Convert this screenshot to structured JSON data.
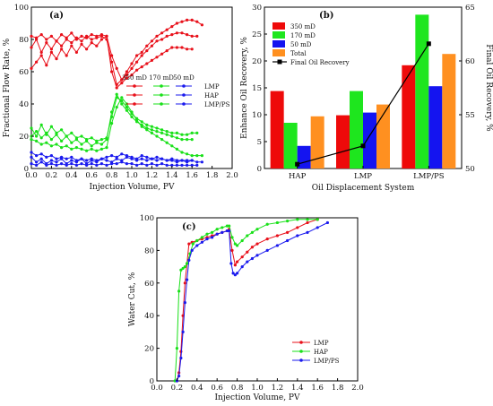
{
  "chart_data": [
    {
      "panel": "(a)",
      "type": "line",
      "xlabel": "Injection Volume, PV",
      "ylabel": "Fractional Flow Rate, %",
      "xlim": [
        0,
        2.0
      ],
      "ylim": [
        0,
        100
      ],
      "xticks": [
        "0.0",
        "0.2",
        "0.4",
        "0.6",
        "0.8",
        "1.0",
        "1.2",
        "1.4",
        "1.6",
        "1.8",
        "2.0"
      ],
      "yticks": [
        "0",
        "20",
        "40",
        "60",
        "80",
        "100"
      ],
      "legend_header": [
        "350 mD",
        "170 mD",
        "50 mD"
      ],
      "legend_rows": [
        "LMP",
        "HAP",
        "LMP/PS"
      ],
      "colors": {
        "red": "#e8101a",
        "green": "#19e019",
        "blue": "#1a1aee"
      },
      "series": [
        {
          "group": "350 mD",
          "system": "LMP",
          "color": "red",
          "marker": "dot",
          "x": [
            0,
            0.05,
            0.1,
            0.15,
            0.2,
            0.25,
            0.3,
            0.35,
            0.4,
            0.45,
            0.5,
            0.55,
            0.6,
            0.65,
            0.7,
            0.75,
            0.8,
            0.85,
            0.9,
            0.95,
            1.0,
            1.05,
            1.1,
            1.15,
            1.2,
            1.25,
            1.3,
            1.35,
            1.4,
            1.45,
            1.5,
            1.55,
            1.6,
            1.65,
            1.7
          ],
          "y": [
            82,
            81,
            83,
            80,
            82,
            79,
            83,
            81,
            84,
            80,
            82,
            81,
            83,
            82,
            83,
            82,
            70,
            62,
            55,
            60,
            65,
            70,
            72,
            76,
            79,
            82,
            84,
            86,
            88,
            90,
            91,
            92,
            92,
            91,
            89
          ]
        },
        {
          "group": "350 mD",
          "system": "HAP",
          "color": "red",
          "marker": "dot",
          "x": [
            0,
            0.05,
            0.1,
            0.15,
            0.2,
            0.25,
            0.3,
            0.35,
            0.4,
            0.45,
            0.5,
            0.55,
            0.6,
            0.65,
            0.7,
            0.75,
            0.8,
            0.85,
            0.9,
            0.95,
            1.0,
            1.05,
            1.1,
            1.15,
            1.2,
            1.25,
            1.3,
            1.35,
            1.4,
            1.45,
            1.5,
            1.55,
            1.6,
            1.65
          ],
          "y": [
            75,
            80,
            72,
            78,
            74,
            79,
            76,
            80,
            78,
            81,
            79,
            82,
            80,
            81,
            82,
            80,
            66,
            52,
            55,
            58,
            62,
            66,
            70,
            73,
            76,
            79,
            80,
            82,
            83,
            84,
            84,
            83,
            82,
            82
          ]
        },
        {
          "group": "350 mD",
          "system": "LMP/PS",
          "color": "red",
          "marker": "dot",
          "x": [
            0,
            0.05,
            0.1,
            0.15,
            0.2,
            0.25,
            0.3,
            0.35,
            0.4,
            0.45,
            0.5,
            0.55,
            0.6,
            0.65,
            0.7,
            0.75,
            0.8,
            0.85,
            0.9,
            0.95,
            1.0,
            1.05,
            1.1,
            1.15,
            1.2,
            1.25,
            1.3,
            1.35,
            1.4,
            1.45,
            1.5,
            1.55,
            1.6
          ],
          "y": [
            62,
            66,
            70,
            64,
            72,
            68,
            74,
            70,
            76,
            72,
            77,
            74,
            78,
            76,
            80,
            82,
            60,
            50,
            53,
            56,
            58,
            61,
            63,
            65,
            67,
            69,
            71,
            73,
            75,
            75,
            75,
            74,
            74
          ]
        },
        {
          "group": "170 mD",
          "system": "LMP",
          "color": "green",
          "marker": "dot",
          "x": [
            0,
            0.05,
            0.1,
            0.15,
            0.2,
            0.25,
            0.3,
            0.35,
            0.4,
            0.45,
            0.5,
            0.55,
            0.6,
            0.65,
            0.7,
            0.75,
            0.8,
            0.85,
            0.9,
            0.95,
            1.0,
            1.05,
            1.1,
            1.15,
            1.2,
            1.25,
            1.3,
            1.35,
            1.4,
            1.45,
            1.5,
            1.55,
            1.6,
            1.65,
            1.7
          ],
          "y": [
            18,
            17,
            15,
            16,
            14,
            15,
            13,
            14,
            12,
            13,
            12,
            11,
            12,
            11,
            12,
            13,
            28,
            38,
            44,
            40,
            35,
            30,
            26,
            24,
            22,
            20,
            18,
            16,
            14,
            12,
            10,
            9,
            8,
            8,
            8
          ]
        },
        {
          "group": "170 mD",
          "system": "HAP",
          "color": "green",
          "marker": "dot",
          "x": [
            0,
            0.05,
            0.1,
            0.15,
            0.2,
            0.25,
            0.3,
            0.35,
            0.4,
            0.45,
            0.5,
            0.55,
            0.6,
            0.65,
            0.7,
            0.75,
            0.8,
            0.85,
            0.9,
            0.95,
            1.0,
            1.05,
            1.1,
            1.15,
            1.2,
            1.25,
            1.3,
            1.35,
            1.4,
            1.45,
            1.5,
            1.55,
            1.6,
            1.65
          ],
          "y": [
            25,
            20,
            27,
            21,
            26,
            22,
            24,
            20,
            22,
            19,
            20,
            18,
            19,
            17,
            18,
            19,
            32,
            44,
            42,
            38,
            34,
            31,
            29,
            27,
            26,
            25,
            24,
            23,
            22,
            22,
            21,
            21,
            22,
            22
          ]
        },
        {
          "group": "170 mD",
          "system": "LMP/PS",
          "color": "green",
          "marker": "dot",
          "x": [
            0,
            0.05,
            0.1,
            0.15,
            0.2,
            0.25,
            0.3,
            0.35,
            0.4,
            0.45,
            0.5,
            0.55,
            0.6,
            0.65,
            0.7,
            0.75,
            0.8,
            0.85,
            0.9,
            0.95,
            1.0,
            1.05,
            1.1,
            1.15,
            1.2,
            1.25,
            1.3,
            1.35,
            1.4,
            1.45,
            1.5,
            1.55,
            1.6
          ],
          "y": [
            20,
            23,
            19,
            22,
            18,
            21,
            17,
            20,
            16,
            18,
            15,
            17,
            14,
            16,
            15,
            18,
            35,
            46,
            40,
            36,
            32,
            29,
            27,
            25,
            24,
            23,
            22,
            21,
            20,
            19,
            18,
            18,
            18
          ]
        },
        {
          "group": "50 mD",
          "system": "LMP",
          "color": "blue",
          "marker": "dot",
          "x": [
            0,
            0.05,
            0.1,
            0.15,
            0.2,
            0.25,
            0.3,
            0.35,
            0.4,
            0.45,
            0.5,
            0.55,
            0.6,
            0.65,
            0.7,
            0.75,
            0.8,
            0.85,
            0.9,
            0.95,
            1.0,
            1.05,
            1.1,
            1.15,
            1.2,
            1.25,
            1.3,
            1.35,
            1.4,
            1.45,
            1.5,
            1.55,
            1.6,
            1.65,
            1.7
          ],
          "y": [
            7,
            4,
            6,
            3,
            5,
            4,
            6,
            3,
            5,
            4,
            6,
            3,
            5,
            4,
            6,
            5,
            4,
            6,
            5,
            7,
            6,
            5,
            6,
            5,
            6,
            5,
            6,
            5,
            5,
            4,
            5,
            4,
            5,
            4,
            4
          ]
        },
        {
          "group": "50 mD",
          "system": "HAP",
          "color": "blue",
          "marker": "dot",
          "x": [
            0,
            0.05,
            0.1,
            0.15,
            0.2,
            0.25,
            0.3,
            0.35,
            0.4,
            0.45,
            0.5,
            0.55,
            0.6,
            0.65,
            0.7,
            0.75,
            0.8,
            0.85,
            0.9,
            0.95,
            1.0,
            1.05,
            1.1,
            1.15,
            1.2,
            1.25,
            1.3,
            1.35,
            1.4,
            1.45,
            1.5,
            1.55,
            1.6,
            1.65
          ],
          "y": [
            3,
            2,
            4,
            2,
            3,
            2,
            3,
            2,
            3,
            2,
            3,
            2,
            3,
            2,
            3,
            2,
            3,
            3,
            4,
            3,
            3,
            2,
            3,
            2,
            3,
            2,
            3,
            2,
            2,
            2,
            2,
            2,
            2,
            2
          ]
        },
        {
          "group": "50 mD",
          "system": "LMP/PS",
          "color": "blue",
          "marker": "dot",
          "x": [
            0,
            0.05,
            0.1,
            0.15,
            0.2,
            0.25,
            0.3,
            0.35,
            0.4,
            0.45,
            0.5,
            0.55,
            0.6,
            0.65,
            0.7,
            0.75,
            0.8,
            0.85,
            0.9,
            0.95,
            1.0,
            1.05,
            1.1,
            1.15,
            1.2,
            1.25,
            1.3,
            1.35,
            1.4,
            1.45,
            1.5,
            1.55,
            1.6
          ],
          "y": [
            10,
            8,
            9,
            7,
            8,
            6,
            7,
            6,
            7,
            5,
            6,
            5,
            6,
            5,
            6,
            7,
            8,
            7,
            9,
            8,
            7,
            6,
            8,
            7,
            6,
            7,
            6,
            5,
            6,
            5,
            5,
            5,
            5
          ]
        }
      ]
    },
    {
      "panel": "(b)",
      "type": "bar",
      "xlabel": "Oil Displacement System",
      "ylabel": "Enhance Oil Recovery, %",
      "ylabel_right": "Final Oil Recovery, %",
      "categories": [
        "HAP",
        "LMP",
        "LMP/PS"
      ],
      "ylim": [
        0,
        30
      ],
      "ylim_right": [
        50,
        65
      ],
      "yticks": [
        "0",
        "5",
        "10",
        "15",
        "20",
        "25",
        "30"
      ],
      "yticks_right": [
        "50",
        "55",
        "60",
        "65"
      ],
      "legend": [
        "350 mD",
        "170 mD",
        "50 mD",
        "Total",
        "Final Oil Recovery"
      ],
      "series": [
        {
          "name": "350 mD",
          "color": "#ee0a0a",
          "values": [
            14.4,
            9.9,
            19.2
          ]
        },
        {
          "name": "170 mD",
          "color": "#1ee61e",
          "values": [
            8.5,
            14.4,
            28.6
          ]
        },
        {
          "name": "50 mD",
          "color": "#1414f0",
          "values": [
            4.2,
            10.4,
            15.3
          ]
        },
        {
          "name": "Total",
          "color": "#ff9020",
          "values": [
            9.7,
            11.9,
            21.3
          ]
        }
      ],
      "line": {
        "name": "Final Oil Recovery",
        "color": "#000000",
        "values": [
          50.4,
          52.1,
          61.6
        ]
      }
    },
    {
      "panel": "(c)",
      "type": "line",
      "xlabel": "Injection Volume, PV",
      "ylabel": "Water Cut, %",
      "xlim": [
        0,
        2.0
      ],
      "ylim": [
        0,
        100
      ],
      "xticks": [
        "0.0",
        "0.2",
        "0.4",
        "0.6",
        "0.8",
        "1.0",
        "1.2",
        "1.4",
        "1.6",
        "1.8",
        "2.0"
      ],
      "yticks": [
        "0",
        "20",
        "40",
        "60",
        "80",
        "100"
      ],
      "legend": [
        "LMP",
        "HAP",
        "LMP/PS"
      ],
      "series": [
        {
          "name": "LMP",
          "color": "#e8101a",
          "x": [
            0.2,
            0.22,
            0.24,
            0.26,
            0.28,
            0.3,
            0.32,
            0.35,
            0.4,
            0.45,
            0.5,
            0.55,
            0.6,
            0.65,
            0.7,
            0.72,
            0.75,
            0.78,
            0.8,
            0.85,
            0.9,
            0.95,
            1.0,
            1.1,
            1.2,
            1.3,
            1.4,
            1.5,
            1.6
          ],
          "y": [
            0,
            5,
            18,
            40,
            60,
            72,
            84,
            85,
            86,
            87,
            88,
            89,
            90,
            91,
            92,
            93,
            80,
            71,
            73,
            76,
            79,
            82,
            84,
            87,
            89,
            91,
            94,
            97,
            99
          ]
        },
        {
          "name": "HAP",
          "color": "#19e019",
          "x": [
            0.18,
            0.2,
            0.22,
            0.24,
            0.26,
            0.28,
            0.3,
            0.33,
            0.36,
            0.4,
            0.45,
            0.5,
            0.55,
            0.6,
            0.65,
            0.7,
            0.72,
            0.75,
            0.78,
            0.8,
            0.85,
            0.9,
            0.95,
            1.0,
            1.1,
            1.2,
            1.3,
            1.4,
            1.5,
            1.6
          ],
          "y": [
            0,
            20,
            55,
            68,
            69,
            70,
            72,
            78,
            84,
            86,
            88,
            90,
            91,
            93,
            94,
            95,
            95,
            88,
            84,
            83,
            86,
            89,
            91,
            93,
            96,
            97,
            98,
            99,
            99,
            99
          ]
        },
        {
          "name": "LMP/PS",
          "color": "#1a1aee",
          "x": [
            0.2,
            0.22,
            0.24,
            0.26,
            0.28,
            0.3,
            0.32,
            0.35,
            0.4,
            0.45,
            0.5,
            0.55,
            0.6,
            0.65,
            0.7,
            0.72,
            0.74,
            0.76,
            0.78,
            0.8,
            0.85,
            0.9,
            0.95,
            1.0,
            1.1,
            1.2,
            1.3,
            1.4,
            1.5,
            1.6,
            1.7
          ],
          "y": [
            0,
            3,
            14,
            30,
            48,
            62,
            74,
            80,
            83,
            85,
            87,
            88,
            90,
            91,
            92,
            92,
            72,
            66,
            65,
            66,
            70,
            73,
            75,
            77,
            80,
            83,
            86,
            89,
            91,
            94,
            97
          ]
        }
      ]
    }
  ]
}
